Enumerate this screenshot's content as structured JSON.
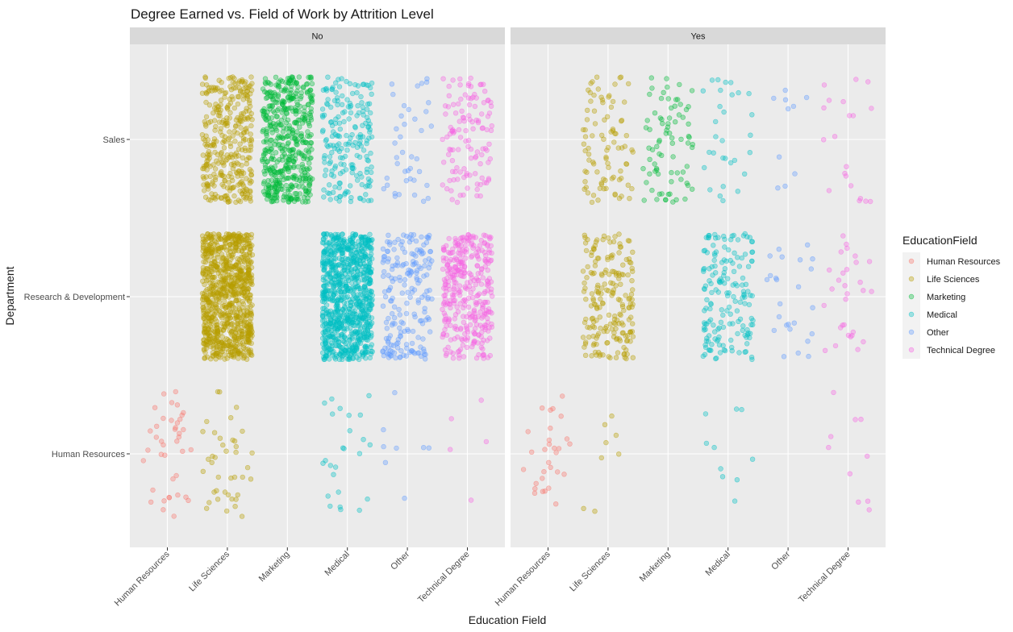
{
  "chart_data": {
    "type": "scatter",
    "title": "Degree Earned vs. Field of Work by Attrition Level",
    "xlabel": "Education Field",
    "ylabel": "Department",
    "x_categories": [
      "Human Resources",
      "Life Sciences",
      "Marketing",
      "Medical",
      "Other",
      "Technical Degree"
    ],
    "y_categories": [
      "Human Resources",
      "Research & Development",
      "Sales"
    ],
    "facet_variable": "Attrition",
    "facets": [
      "No",
      "Yes"
    ],
    "jitter": true,
    "grid": true,
    "legend": {
      "title": "EducationField",
      "position": "right",
      "entries": [
        "Human Resources",
        "Life Sciences",
        "Marketing",
        "Medical",
        "Other",
        "Technical Degree"
      ]
    },
    "colors": {
      "Human Resources": "#F8766D",
      "Life Sciences": "#B79F00",
      "Marketing": "#00BA38",
      "Medical": "#00BFC4",
      "Other": "#619CFF",
      "Technical Degree": "#F564E3"
    },
    "point_counts": [
      {
        "facet": "No",
        "education": "Human Resources",
        "department": "Human Resources",
        "count": 40
      },
      {
        "facet": "No",
        "education": "Life Sciences",
        "department": "Human Resources",
        "count": 40
      },
      {
        "facet": "No",
        "education": "Life Sciences",
        "department": "Research & Development",
        "count": 900
      },
      {
        "facet": "No",
        "education": "Life Sciences",
        "department": "Sales",
        "count": 350
      },
      {
        "facet": "No",
        "education": "Marketing",
        "department": "Sales",
        "count": 500
      },
      {
        "facet": "No",
        "education": "Medical",
        "department": "Human Resources",
        "count": 25
      },
      {
        "facet": "No",
        "education": "Medical",
        "department": "Research & Development",
        "count": 900
      },
      {
        "facet": "No",
        "education": "Medical",
        "department": "Sales",
        "count": 200
      },
      {
        "facet": "No",
        "education": "Other",
        "department": "Human Resources",
        "count": 8
      },
      {
        "facet": "No",
        "education": "Other",
        "department": "Research & Development",
        "count": 200
      },
      {
        "facet": "No",
        "education": "Other",
        "department": "Sales",
        "count": 40
      },
      {
        "facet": "No",
        "education": "Technical Degree",
        "department": "Human Resources",
        "count": 5
      },
      {
        "facet": "No",
        "education": "Technical Degree",
        "department": "Research & Development",
        "count": 350
      },
      {
        "facet": "No",
        "education": "Technical Degree",
        "department": "Sales",
        "count": 120
      },
      {
        "facet": "Yes",
        "education": "Human Resources",
        "department": "Human Resources",
        "count": 30
      },
      {
        "facet": "Yes",
        "education": "Life Sciences",
        "department": "Human Resources",
        "count": 8
      },
      {
        "facet": "Yes",
        "education": "Life Sciences",
        "department": "Research & Development",
        "count": 200
      },
      {
        "facet": "Yes",
        "education": "Life Sciences",
        "department": "Sales",
        "count": 90
      },
      {
        "facet": "Yes",
        "education": "Marketing",
        "department": "Sales",
        "count": 80
      },
      {
        "facet": "Yes",
        "education": "Medical",
        "department": "Human Resources",
        "count": 10
      },
      {
        "facet": "Yes",
        "education": "Medical",
        "department": "Research & Development",
        "count": 170
      },
      {
        "facet": "Yes",
        "education": "Medical",
        "department": "Sales",
        "count": 30
      },
      {
        "facet": "Yes",
        "education": "Other",
        "department": "Research & Development",
        "count": 25
      },
      {
        "facet": "Yes",
        "education": "Other",
        "department": "Sales",
        "count": 10
      },
      {
        "facet": "Yes",
        "education": "Technical Degree",
        "department": "Human Resources",
        "count": 10
      },
      {
        "facet": "Yes",
        "education": "Technical Degree",
        "department": "Research & Development",
        "count": 30
      },
      {
        "facet": "Yes",
        "education": "Technical Degree",
        "department": "Sales",
        "count": 20
      }
    ]
  }
}
